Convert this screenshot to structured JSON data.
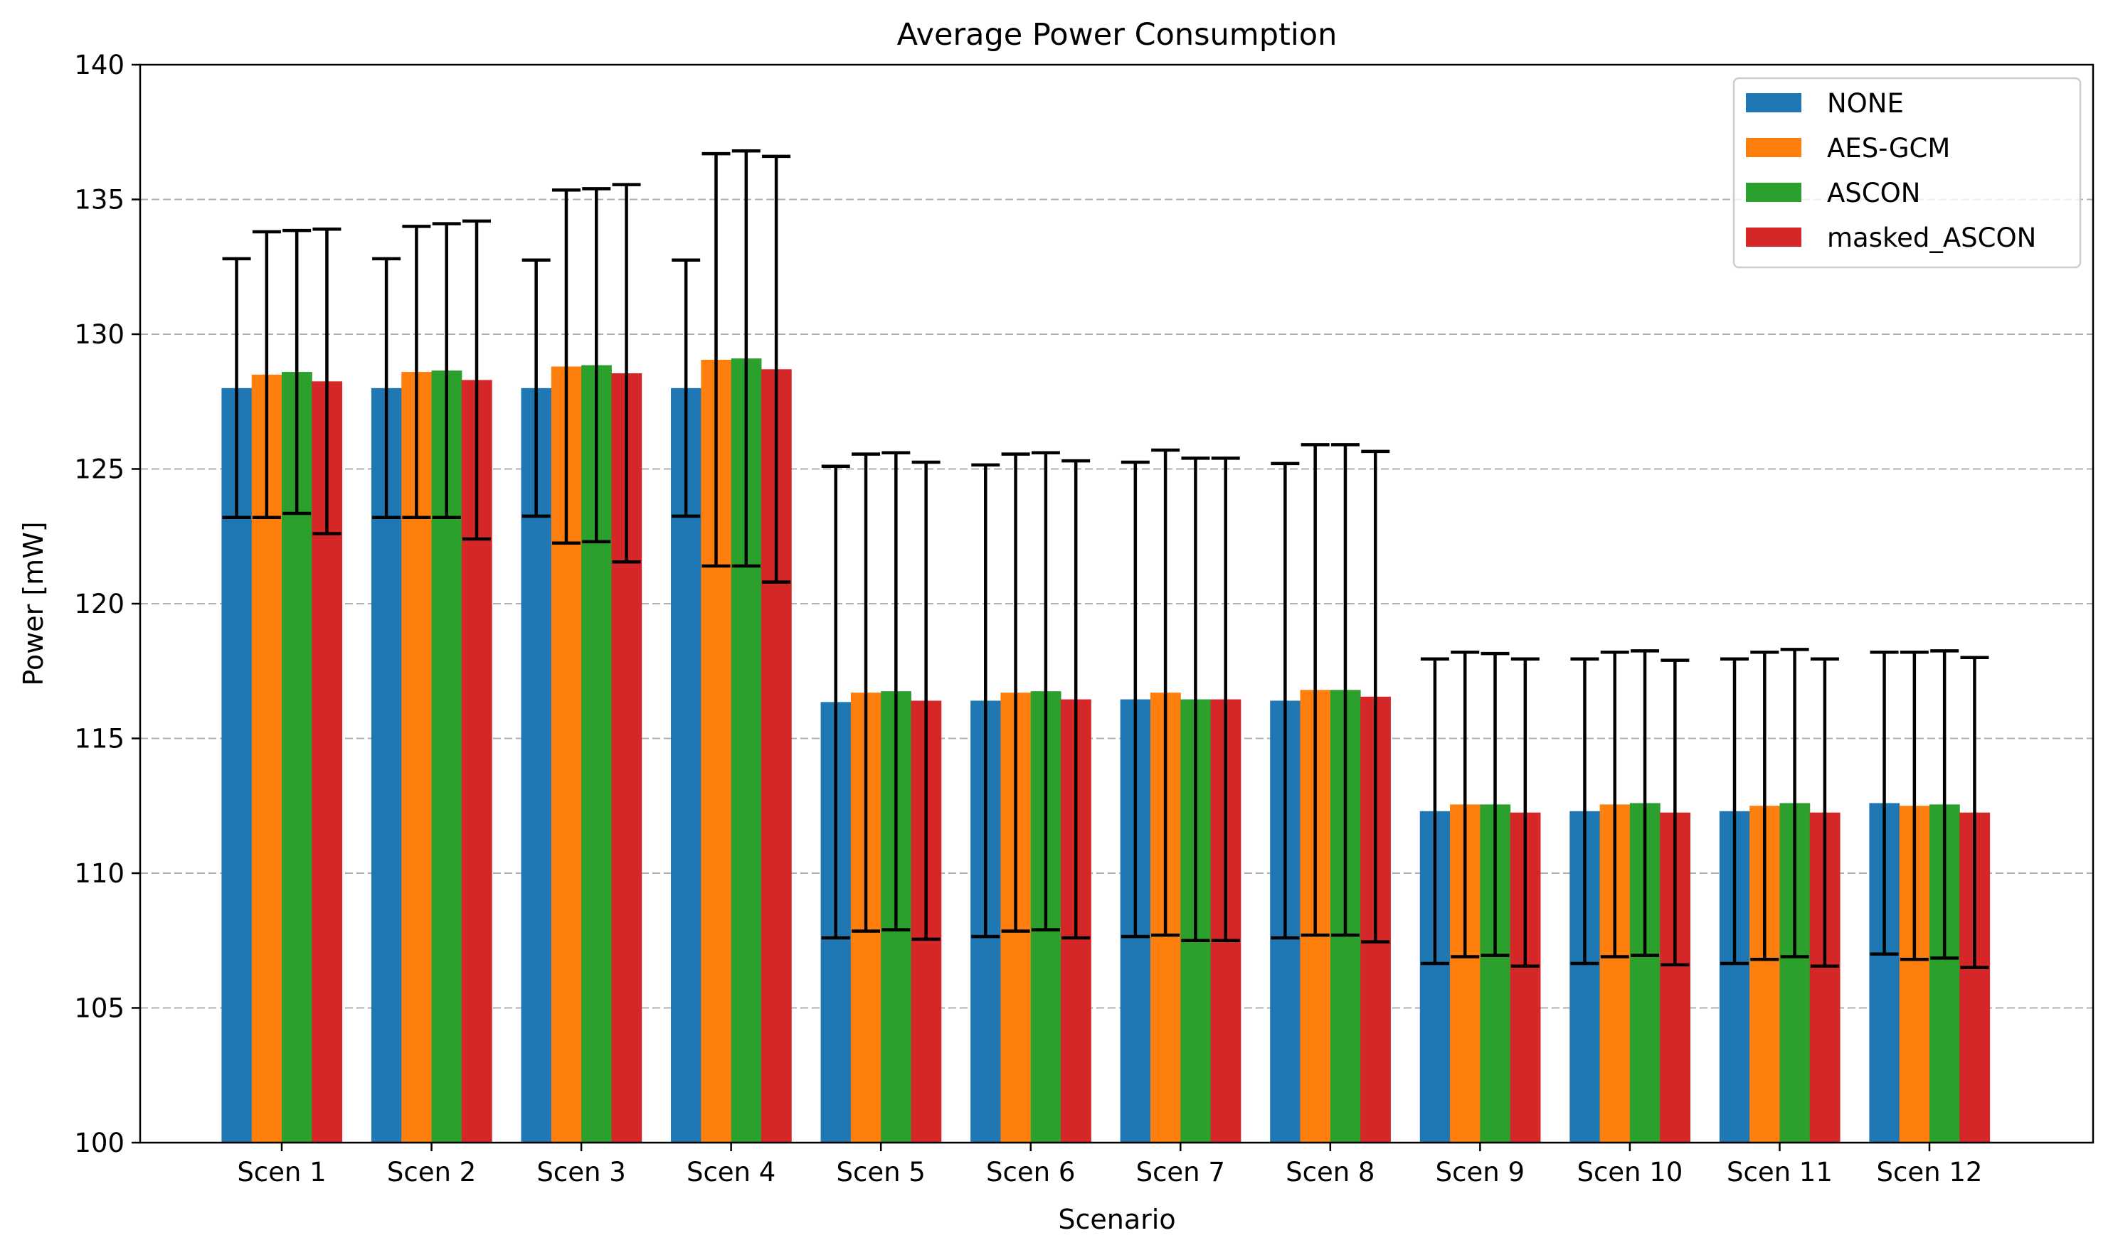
{
  "chart_data": {
    "type": "bar",
    "title": "Average Power Consumption",
    "xlabel": "Scenario",
    "ylabel": "Power [mW]",
    "ylim": [
      100,
      140
    ],
    "yticks": [
      100,
      105,
      110,
      115,
      120,
      125,
      130,
      135,
      140
    ],
    "grid": "y dashed",
    "legend_position": "top-right",
    "categories": [
      "Scen 1",
      "Scen 2",
      "Scen 3",
      "Scen 4",
      "Scen 5",
      "Scen 6",
      "Scen 7",
      "Scen 8",
      "Scen 9",
      "Scen 10",
      "Scen 11",
      "Scen 12"
    ],
    "series": [
      {
        "name": "NONE",
        "color": "#1f77b4",
        "values": [
          128.0,
          128.0,
          128.0,
          128.0,
          116.35,
          116.4,
          116.45,
          116.4,
          112.3,
          112.3,
          112.3,
          112.6
        ],
        "errors": [
          4.8,
          4.8,
          4.75,
          4.75,
          8.75,
          8.75,
          8.8,
          8.8,
          5.65,
          5.65,
          5.65,
          5.6
        ]
      },
      {
        "name": "AES-GCM",
        "color": "#ff7f0e",
        "values": [
          128.5,
          128.6,
          128.8,
          129.05,
          116.7,
          116.7,
          116.7,
          116.8,
          112.55,
          112.55,
          112.5,
          112.5
        ],
        "errors": [
          5.3,
          5.4,
          6.55,
          7.65,
          8.85,
          8.85,
          9.0,
          9.1,
          5.65,
          5.65,
          5.7,
          5.7
        ]
      },
      {
        "name": "ASCON",
        "color": "#2ca02c",
        "values": [
          128.6,
          128.65,
          128.85,
          129.1,
          116.75,
          116.75,
          116.45,
          116.8,
          112.55,
          112.6,
          112.6,
          112.55
        ],
        "errors": [
          5.25,
          5.45,
          6.55,
          7.7,
          8.85,
          8.85,
          8.95,
          9.1,
          5.6,
          5.65,
          5.7,
          5.7
        ]
      },
      {
        "name": "masked_ASCON",
        "color": "#d62728",
        "values": [
          128.25,
          128.3,
          128.55,
          128.7,
          116.4,
          116.45,
          116.45,
          116.55,
          112.25,
          112.25,
          112.25,
          112.25
        ],
        "errors": [
          5.65,
          5.9,
          7.0,
          7.9,
          8.85,
          8.85,
          8.95,
          9.1,
          5.7,
          5.65,
          5.7,
          5.75
        ]
      }
    ]
  }
}
